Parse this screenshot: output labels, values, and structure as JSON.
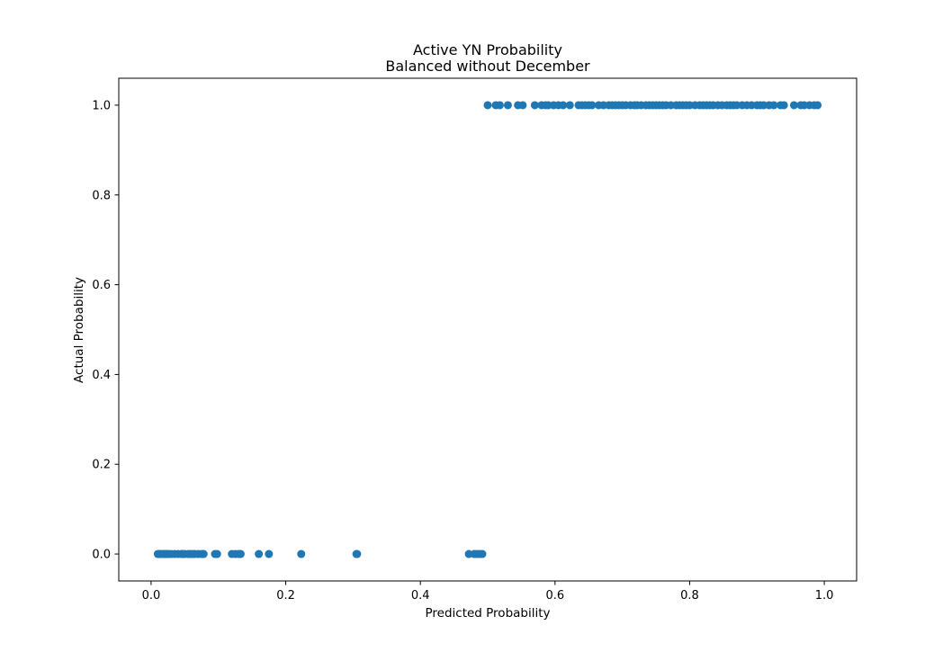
{
  "chart_data": {
    "type": "scatter",
    "title": "Active YN Probability",
    "subtitle": "Balanced without December",
    "xlabel": "Predicted Probability",
    "ylabel": "Actual Probability",
    "xlim": [
      -0.048,
      1.048
    ],
    "ylim": [
      -0.06,
      1.06
    ],
    "xticks": [
      0.0,
      0.2,
      0.4,
      0.6,
      0.8,
      1.0
    ],
    "xtick_labels": [
      "0.0",
      "0.2",
      "0.4",
      "0.6",
      "0.8",
      "1.0"
    ],
    "yticks": [
      0.0,
      0.2,
      0.4,
      0.6,
      0.8,
      1.0
    ],
    "ytick_labels": [
      "0.0",
      "0.2",
      "0.4",
      "0.6",
      "0.8",
      "1.0"
    ],
    "grid": false,
    "marker_color": "#1f77b4",
    "series": [
      {
        "points_y0": [
          0.01,
          0.012,
          0.014,
          0.018,
          0.02,
          0.022,
          0.024,
          0.026,
          0.03,
          0.035,
          0.04,
          0.045,
          0.047,
          0.05,
          0.055,
          0.058,
          0.062,
          0.065,
          0.07,
          0.075,
          0.078,
          0.095,
          0.098,
          0.12,
          0.125,
          0.13,
          0.133,
          0.16,
          0.175,
          0.223,
          0.305,
          0.306,
          0.472,
          0.48,
          0.484,
          0.488,
          0.492
        ],
        "points_y1": [
          0.5,
          0.512,
          0.518,
          0.53,
          0.545,
          0.552,
          0.57,
          0.58,
          0.586,
          0.59,
          0.598,
          0.605,
          0.612,
          0.622,
          0.635,
          0.64,
          0.645,
          0.65,
          0.655,
          0.665,
          0.672,
          0.68,
          0.685,
          0.69,
          0.695,
          0.7,
          0.705,
          0.712,
          0.718,
          0.722,
          0.728,
          0.735,
          0.74,
          0.745,
          0.75,
          0.755,
          0.76,
          0.765,
          0.772,
          0.78,
          0.785,
          0.79,
          0.795,
          0.8,
          0.808,
          0.815,
          0.82,
          0.825,
          0.83,
          0.835,
          0.842,
          0.848,
          0.855,
          0.86,
          0.865,
          0.87,
          0.878,
          0.885,
          0.892,
          0.9,
          0.905,
          0.91,
          0.918,
          0.925,
          0.935,
          0.94,
          0.955,
          0.965,
          0.97,
          0.978,
          0.985,
          0.99
        ]
      }
    ]
  }
}
